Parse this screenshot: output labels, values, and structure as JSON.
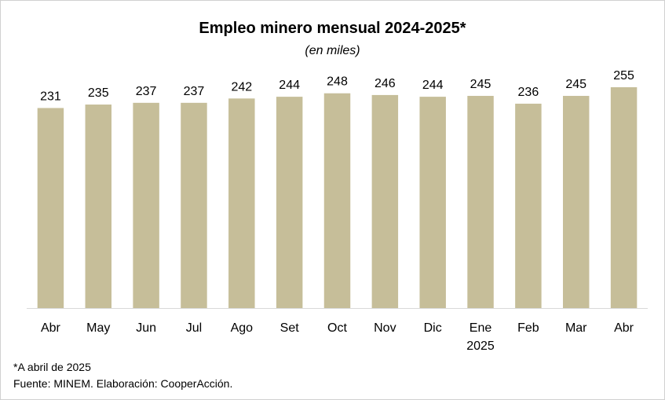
{
  "chart_data": {
    "type": "bar",
    "title": "Empleo minero mensual 2024-2025*",
    "subtitle": "(en miles)",
    "categories": [
      [
        "Abr"
      ],
      [
        "May"
      ],
      [
        "Jun"
      ],
      [
        "Jul"
      ],
      [
        "Ago"
      ],
      [
        "Set"
      ],
      [
        "Oct"
      ],
      [
        "Nov"
      ],
      [
        "Dic"
      ],
      [
        "Ene",
        "2025"
      ],
      [
        "Feb"
      ],
      [
        "Mar"
      ],
      [
        "Abr"
      ]
    ],
    "values": [
      231,
      235,
      237,
      237,
      242,
      244,
      248,
      246,
      244,
      245,
      236,
      245,
      255
    ],
    "ylim": [
      0,
      255
    ],
    "grid": false,
    "data_labels": true,
    "bar_color": "#c6be99"
  },
  "footnotes": {
    "note": "*A abril de 2025",
    "source": "Fuente: MINEM. Elaboración: CooperAcción."
  }
}
